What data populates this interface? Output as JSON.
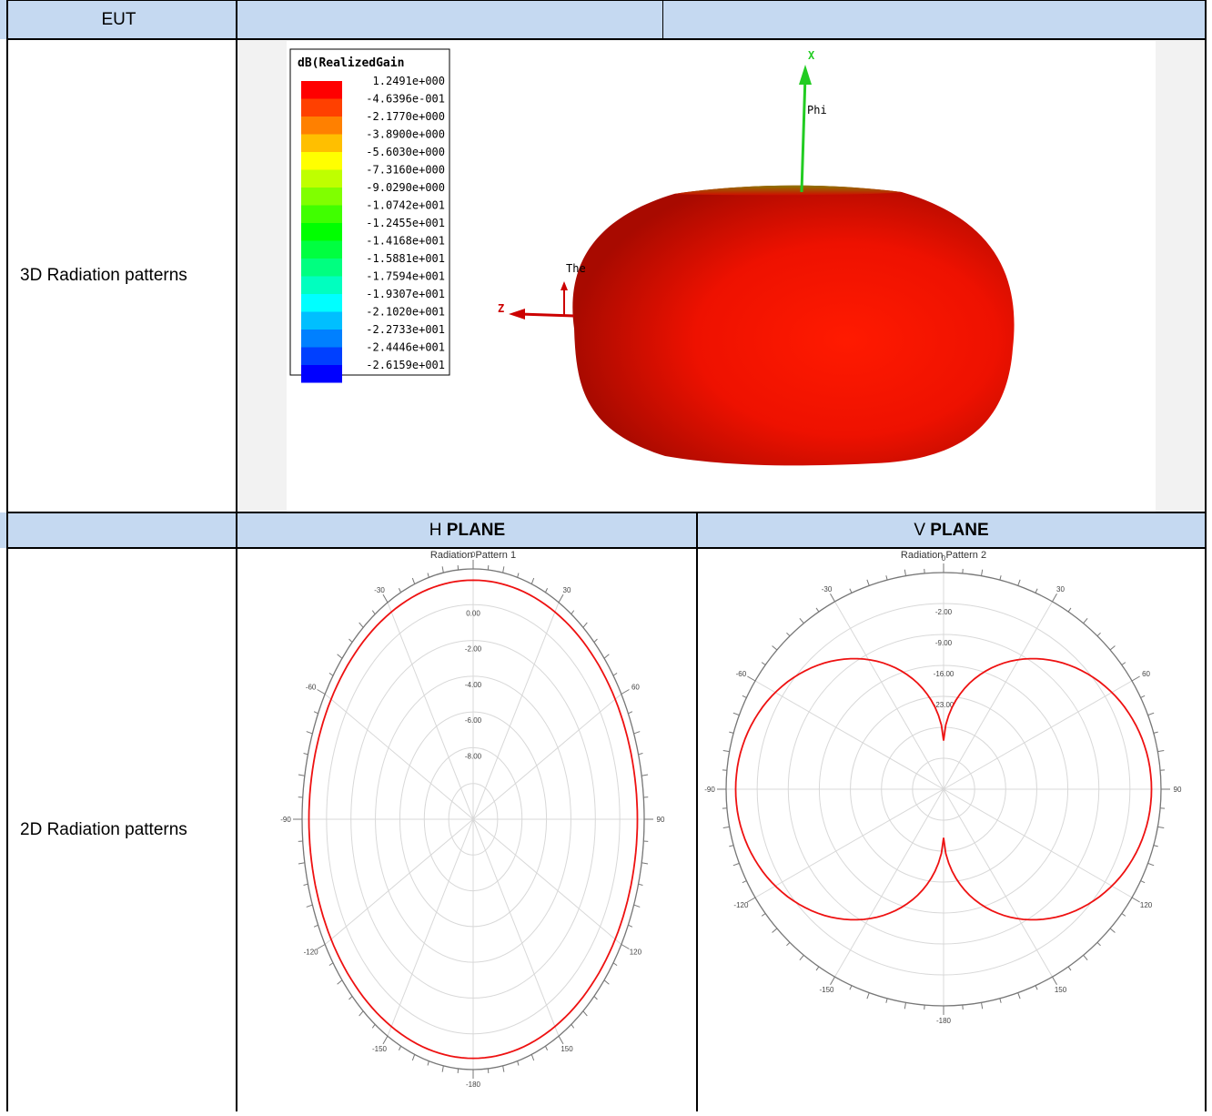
{
  "table": {
    "row1": {
      "label": "EUT",
      "value_a": "",
      "value_b": ""
    },
    "row2": {
      "label": "3D Radiation patterns"
    },
    "row3": {
      "label": "",
      "h_plane_prefix": "H ",
      "h_plane_bold": "PLANE",
      "v_plane_prefix": "V ",
      "v_plane_bold": "PLANE"
    },
    "row4": {
      "label": "2D Radiation patterns"
    }
  },
  "plot3d": {
    "legend_title": "dB(RealizedGain",
    "legend_values": [
      "1.2491e+000",
      "-4.6396e-001",
      "-2.1770e+000",
      "-3.8900e+000",
      "-5.6030e+000",
      "-7.3160e+000",
      "-9.0290e+000",
      "-1.0742e+001",
      "-1.2455e+001",
      "-1.4168e+001",
      "-1.5881e+001",
      "-1.7594e+001",
      "-1.9307e+001",
      "-2.1020e+001",
      "-2.2733e+001",
      "-2.4446e+001",
      "-2.6159e+001"
    ],
    "legend_colors": [
      "#ff0000",
      "#ff4000",
      "#ff8000",
      "#ffbf00",
      "#ffff00",
      "#bfff00",
      "#80ff00",
      "#40ff00",
      "#00ff00",
      "#00ff40",
      "#00ff80",
      "#00ffbf",
      "#00ffff",
      "#00bfff",
      "#0080ff",
      "#0040ff",
      "#0000ff"
    ],
    "axis_x": "X",
    "axis_z": "Z",
    "label_phi": "Phi",
    "label_theta": "The",
    "body_color": "#ee1100"
  },
  "chart_data": [
    {
      "type": "polar",
      "title": "Radiation Pattern 1",
      "angle_labels": [
        "0",
        "30",
        "60",
        "90",
        "120",
        "150",
        "-180",
        "-150",
        "-120",
        "-90",
        "-60",
        "-30"
      ],
      "radial_labels": [
        "0.00",
        "-2.00",
        "-4.00",
        "-6.00",
        "-8.00"
      ],
      "series": [
        {
          "color": "#ee1111",
          "shape": "ellipse",
          "rx": 0.96,
          "ry": 0.955
        }
      ]
    },
    {
      "type": "polar",
      "title": "Radiation Pattern 2",
      "angle_labels": [
        "0",
        "30",
        "60",
        "90",
        "120",
        "150",
        "-180",
        "-150",
        "-120",
        "-90",
        "-60",
        "-30"
      ],
      "radial_labels": [
        "-2.00",
        "-9.00",
        "-16.00",
        "-23.00"
      ],
      "series": [
        {
          "color": "#ee1111",
          "shape": "figure-eight"
        }
      ]
    }
  ]
}
